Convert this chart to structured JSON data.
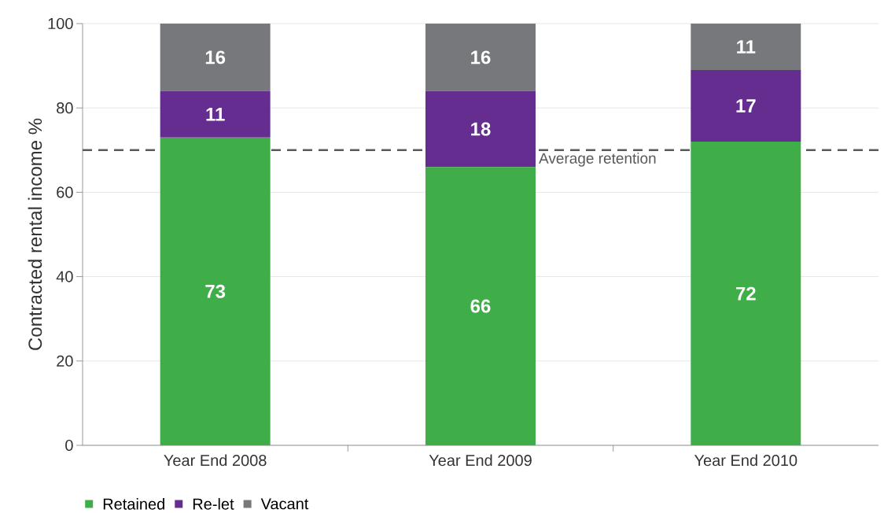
{
  "chart_data": {
    "type": "bar",
    "stacked": true,
    "ylabel": "Contracted rental income %",
    "categories": [
      "Year End 2008",
      "Year End 2009",
      "Year End 2010"
    ],
    "series": [
      {
        "name": "Retained",
        "color": "#3fae49",
        "values": [
          73,
          66,
          72
        ]
      },
      {
        "name": "Re-let",
        "color": "#662d91",
        "values": [
          11,
          18,
          17
        ]
      },
      {
        "name": "Vacant",
        "color": "#77787b",
        "values": [
          16,
          16,
          11
        ]
      }
    ],
    "ylim": [
      0,
      100
    ],
    "yticks": [
      0,
      20,
      40,
      60,
      80,
      100
    ],
    "grid": "y",
    "data_labels": true,
    "legend": "bottom left",
    "marker": "square",
    "ref_lines": [
      {
        "axis": "y",
        "value": 70,
        "label": "Average retention",
        "color": "#58595b",
        "line_style": "dashed"
      }
    ]
  }
}
